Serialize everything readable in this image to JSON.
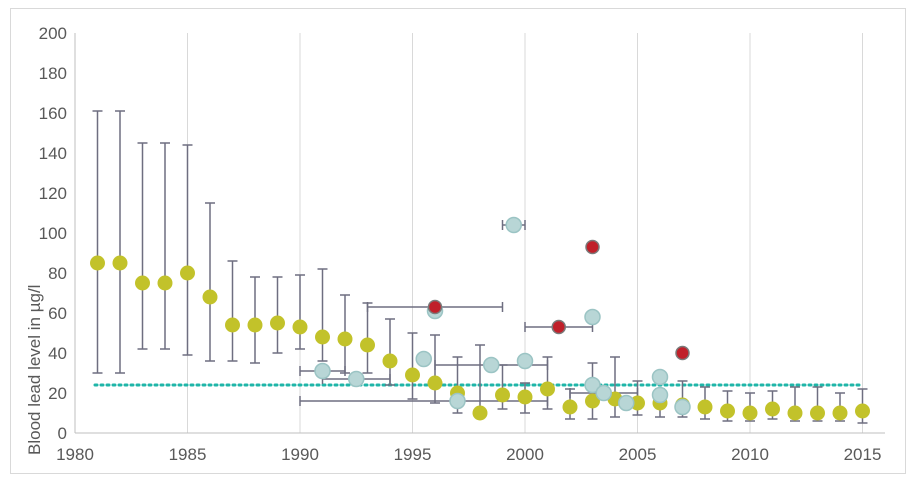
{
  "chart_data": {
    "type": "scatter",
    "title": "",
    "xlabel": "",
    "ylabel": "Blood lead level in µg/l",
    "xlim": [
      1980,
      2016
    ],
    "ylim": [
      0,
      200
    ],
    "x_ticks": [
      1980,
      1985,
      1990,
      1995,
      2000,
      2005,
      2010,
      2015
    ],
    "y_ticks": [
      0,
      20,
      40,
      60,
      80,
      100,
      120,
      140,
      160,
      180,
      200
    ],
    "grid": "vertical",
    "legend": "none",
    "reference_line": {
      "y": 24,
      "color": "#1fb5a8",
      "style": "dotted"
    },
    "series": [
      {
        "color": "#c2c22a",
        "points": [
          {
            "x": 1981,
            "y": 85,
            "lo": 30,
            "hi": 161
          },
          {
            "x": 1982,
            "y": 85,
            "lo": 30,
            "hi": 161
          },
          {
            "x": 1983,
            "y": 75,
            "lo": 42,
            "hi": 145
          },
          {
            "x": 1984,
            "y": 75,
            "lo": 42,
            "hi": 145
          },
          {
            "x": 1985,
            "y": 80,
            "lo": 39,
            "hi": 144
          },
          {
            "x": 1986,
            "y": 68,
            "lo": 36,
            "hi": 115
          },
          {
            "x": 1987,
            "y": 54,
            "lo": 36,
            "hi": 86
          },
          {
            "x": 1988,
            "y": 54,
            "lo": 35,
            "hi": 78
          },
          {
            "x": 1989,
            "y": 55,
            "lo": 40,
            "hi": 78
          },
          {
            "x": 1990,
            "y": 53,
            "lo": 42,
            "hi": 79
          },
          {
            "x": 1991,
            "y": 48,
            "lo": 36,
            "hi": 82
          },
          {
            "x": 1992,
            "y": 47,
            "lo": 30,
            "hi": 69
          },
          {
            "x": 1993,
            "y": 44,
            "lo": 30,
            "hi": 65
          },
          {
            "x": 1994,
            "y": 36,
            "lo": 24,
            "hi": 57
          },
          {
            "x": 1995,
            "y": 29,
            "lo": 17,
            "hi": 50
          },
          {
            "x": 1996,
            "y": 25,
            "lo": 15,
            "hi": 49
          },
          {
            "x": 1997,
            "y": 20,
            "lo": 10,
            "hi": 38
          },
          {
            "x": 1998,
            "y": 10,
            "lo": 10,
            "hi": 44
          },
          {
            "x": 1999,
            "y": 19,
            "lo": 12,
            "hi": 34
          },
          {
            "x": 2000,
            "y": 18,
            "lo": 10,
            "hi": 25
          },
          {
            "x": 2001,
            "y": 22,
            "lo": 12,
            "hi": 38
          },
          {
            "x": 2002,
            "y": 13,
            "lo": 7,
            "hi": 22
          },
          {
            "x": 2003,
            "y": 16,
            "lo": 7,
            "hi": 35
          },
          {
            "x": 2004,
            "y": 17,
            "lo": 8,
            "hi": 38
          },
          {
            "x": 2005,
            "y": 15,
            "lo": 9,
            "hi": 26
          },
          {
            "x": 2006,
            "y": 15,
            "lo": 8,
            "hi": 22
          },
          {
            "x": 2007,
            "y": 14,
            "lo": 8,
            "hi": 26
          },
          {
            "x": 2008,
            "y": 13,
            "lo": 7,
            "hi": 23
          },
          {
            "x": 2009,
            "y": 11,
            "lo": 6,
            "hi": 21
          },
          {
            "x": 2010,
            "y": 10,
            "lo": 6,
            "hi": 20
          },
          {
            "x": 2011,
            "y": 12,
            "lo": 7,
            "hi": 21
          },
          {
            "x": 2012,
            "y": 10,
            "lo": 6,
            "hi": 23
          },
          {
            "x": 2013,
            "y": 10,
            "lo": 6,
            "hi": 23
          },
          {
            "x": 2014,
            "y": 10,
            "lo": 6,
            "hi": 20
          },
          {
            "x": 2015,
            "y": 11,
            "lo": 5,
            "hi": 22
          }
        ]
      },
      {
        "color": "#b8d6d6",
        "points": [
          {
            "x": 1991,
            "y": 31,
            "xlo": 1990,
            "xhi": 1992
          },
          {
            "x": 1992.5,
            "y": 27,
            "xlo": 1991,
            "xhi": 1994
          },
          {
            "x": 1995.5,
            "y": 37
          },
          {
            "x": 1996,
            "y": 61
          },
          {
            "x": 1997,
            "y": 16
          },
          {
            "x": 1998.5,
            "y": 34,
            "xlo": 1996,
            "xhi": 2001
          },
          {
            "x": 1999.5,
            "y": 104,
            "xlo": 1999,
            "xhi": 2000
          },
          {
            "x": 2000,
            "y": 36
          },
          {
            "x": 2003,
            "y": 58
          },
          {
            "x": 2003,
            "y": 24
          },
          {
            "x": 2003.5,
            "y": 20,
            "xlo": 2002,
            "xhi": 2005
          },
          {
            "x": 2004.5,
            "y": 15
          },
          {
            "x": 2006,
            "y": 28
          },
          {
            "x": 2006,
            "y": 19
          },
          {
            "x": 2007,
            "y": 13
          }
        ]
      },
      {
        "color": "#c0202a",
        "points": [
          {
            "x": 1996,
            "y": 63,
            "xlo": 1993,
            "xhi": 1999
          },
          {
            "x": 2001.5,
            "y": 53,
            "xlo": 2000,
            "xhi": 2003
          },
          {
            "x": 2003,
            "y": 93
          },
          {
            "x": 2007,
            "y": 40
          }
        ]
      }
    ],
    "extra_error_bars": [
      {
        "y": 16,
        "xlo": 1990,
        "xhi": 2001
      }
    ]
  }
}
